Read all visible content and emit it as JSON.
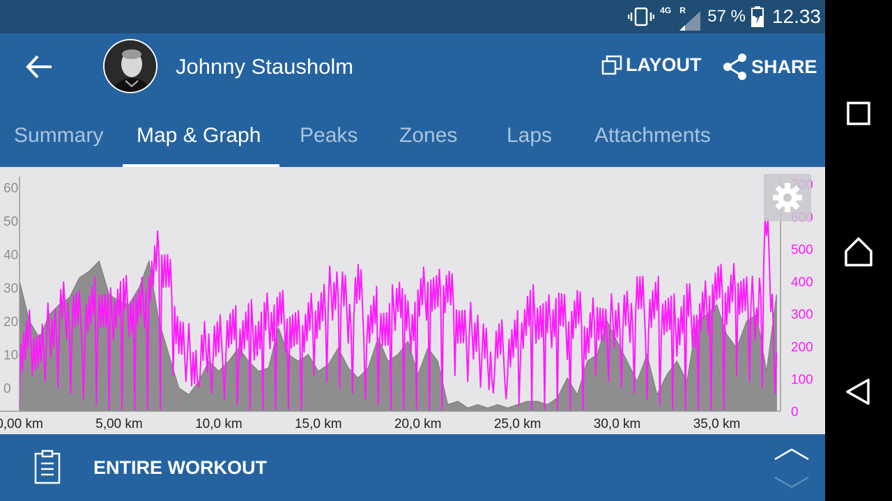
{
  "status_bar": {
    "network": "4G",
    "roaming": "R",
    "battery": "57 %",
    "time": "12.33",
    "icons": [
      "vibrate-icon",
      "signal-icon",
      "battery-charging-icon"
    ]
  },
  "app_bar": {
    "user_name": "Johnny Stausholm",
    "layout_label": "LAYOUT",
    "share_label": "SHARE",
    "icons": [
      "back-arrow-icon",
      "layout-icon",
      "share-icon"
    ]
  },
  "tabs": [
    {
      "label": "Summary",
      "active": false
    },
    {
      "label": "Map & Graph",
      "active": true
    },
    {
      "label": "Peaks",
      "active": false
    },
    {
      "label": "Zones",
      "active": false
    },
    {
      "label": "Laps",
      "active": false
    },
    {
      "label": "Attachments",
      "active": false
    }
  ],
  "colors": {
    "status_bar": "#1f4d74",
    "app_bar": "#2563a0",
    "tab_inactive": "#aac4de",
    "power_series": "#ff1aff",
    "elevation_fill": "#8e8e8e",
    "chart_bg": "#e6e6e8"
  },
  "chart_data": {
    "type": "area",
    "x_tick_labels": [
      "0,00 km",
      "5,00 km",
      "10,0 km",
      "15,0 km",
      "20,0 km",
      "25,0 km",
      "30,0 km",
      "35,0 km"
    ],
    "x_tick_values_km": [
      0,
      5,
      10,
      15,
      20,
      25,
      30,
      35
    ],
    "xlim_km": [
      0,
      38.2
    ],
    "y_left_ticks": [
      "60",
      "50",
      "40",
      "30",
      "20",
      "10",
      "0"
    ],
    "y_left_range": [
      -7,
      62
    ],
    "y_right_ticks": [
      "700",
      "600",
      "500",
      "400",
      "300",
      "200",
      "100",
      "0"
    ],
    "y_right_range": [
      0,
      710
    ],
    "series": [
      {
        "axis": "left",
        "type": "area",
        "color": "#8e8e8e",
        "x_km": [
          0,
          0.5,
          1.0,
          1.5,
          2.0,
          2.5,
          3.0,
          3.5,
          4.0,
          4.5,
          5.0,
          5.5,
          6.0,
          6.5,
          7.0,
          7.5,
          8.0,
          8.5,
          9.0,
          9.5,
          10.0,
          10.5,
          11.0,
          11.5,
          12.0,
          12.5,
          13.0,
          13.5,
          14.0,
          14.5,
          15.0,
          15.5,
          16.0,
          16.5,
          17.0,
          17.5,
          18.0,
          18.5,
          19.0,
          19.5,
          20.0,
          20.5,
          21.0,
          21.5,
          22.0,
          22.5,
          23.0,
          23.5,
          24.0,
          24.5,
          25.0,
          25.5,
          26.0,
          26.5,
          27.0,
          27.5,
          28.0,
          28.5,
          29.0,
          29.5,
          30.0,
          30.5,
          31.0,
          31.5,
          32.0,
          32.5,
          33.0,
          33.5,
          34.0,
          34.5,
          35.0,
          35.5,
          36.0,
          36.5,
          37.0,
          37.5,
          38.0
        ],
        "values": [
          32,
          20,
          15,
          22,
          25,
          27,
          33,
          35,
          38,
          28,
          26,
          25,
          30,
          38,
          20,
          10,
          0,
          -2,
          2,
          8,
          5,
          8,
          12,
          8,
          5,
          6,
          18,
          10,
          8,
          10,
          5,
          7,
          12,
          6,
          3,
          6,
          15,
          8,
          10,
          14,
          4,
          12,
          8,
          -5,
          -4,
          -6,
          -5,
          -6,
          -5,
          -6,
          -5,
          -4,
          -4,
          -5,
          -3,
          3,
          -2,
          8,
          10,
          20,
          14,
          8,
          2,
          10,
          -2,
          4,
          8,
          2,
          20,
          22,
          25,
          16,
          12,
          20,
          22,
          5,
          28
        ]
      },
      {
        "axis": "right",
        "type": "line",
        "color": "#ff1aff",
        "x_km": [
          0,
          0.5,
          1.0,
          1.5,
          2.0,
          2.5,
          3.0,
          3.5,
          4.0,
          4.5,
          5.0,
          5.5,
          6.0,
          6.5,
          7.0,
          7.5,
          8.0,
          8.5,
          9.0,
          9.5,
          10.0,
          10.5,
          11.0,
          11.5,
          12.0,
          12.5,
          13.0,
          13.5,
          14.0,
          14.5,
          15.0,
          15.5,
          16.0,
          16.5,
          17.0,
          17.5,
          18.0,
          18.5,
          19.0,
          19.5,
          20.0,
          20.5,
          21.0,
          21.5,
          22.0,
          22.5,
          23.0,
          23.5,
          24.0,
          24.5,
          25.0,
          25.5,
          26.0,
          26.5,
          27.0,
          27.5,
          28.0,
          28.5,
          29.0,
          29.5,
          30.0,
          30.5,
          31.0,
          31.5,
          32.0,
          32.5,
          33.0,
          33.5,
          34.0,
          34.5,
          35.0,
          35.5,
          36.0,
          36.5,
          37.0,
          37.5,
          38.0
        ],
        "values": [
          180,
          240,
          200,
          250,
          300,
          320,
          280,
          300,
          340,
          280,
          350,
          320,
          300,
          380,
          480,
          420,
          250,
          180,
          140,
          220,
          200,
          250,
          230,
          260,
          240,
          280,
          300,
          260,
          220,
          280,
          320,
          350,
          400,
          300,
          380,
          260,
          300,
          240,
          380,
          250,
          320,
          380,
          340,
          390,
          300,
          240,
          260,
          150,
          200,
          180,
          220,
          300,
          300,
          260,
          320,
          250,
          300,
          220,
          320,
          250,
          300,
          280,
          360,
          300,
          330,
          300,
          260,
          320,
          260,
          320,
          380,
          340,
          400,
          360,
          300,
          560,
          180
        ]
      }
    ]
  },
  "bottom_bar": {
    "label": "ENTIRE WORKOUT",
    "icons": [
      "clipboard-icon",
      "expand-chevron-icon"
    ]
  },
  "nav_bar": {
    "icons": [
      "recents-icon",
      "home-icon",
      "back-triangle-icon"
    ]
  }
}
